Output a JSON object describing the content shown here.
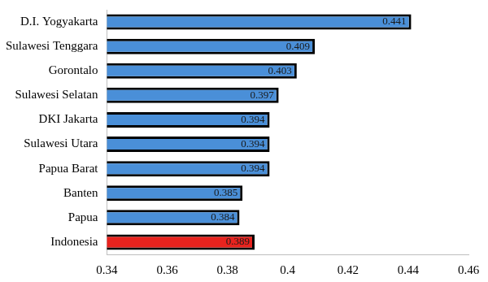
{
  "chart_data": {
    "type": "bar",
    "orientation": "horizontal",
    "categories": [
      "D.I. Yogyakarta",
      "Sulawesi Tenggara",
      "Gorontalo",
      "Sulawesi Selatan",
      "DKI Jakarta",
      "Sulawesi Utara",
      "Papua Barat",
      "Banten",
      "Papua",
      "Indonesia"
    ],
    "values": [
      0.441,
      0.409,
      0.403,
      0.397,
      0.394,
      0.394,
      0.394,
      0.385,
      0.384,
      0.389
    ],
    "colors": [
      "#4a8fd8",
      "#4a8fd8",
      "#4a8fd8",
      "#4a8fd8",
      "#4a8fd8",
      "#4a8fd8",
      "#4a8fd8",
      "#4a8fd8",
      "#4a8fd8",
      "#e8231e"
    ],
    "xlim": [
      0.34,
      0.46
    ],
    "xticks": [
      0.34,
      0.36,
      0.38,
      0.4,
      0.42,
      0.44,
      0.46
    ],
    "grid": false,
    "data_labels": true
  }
}
